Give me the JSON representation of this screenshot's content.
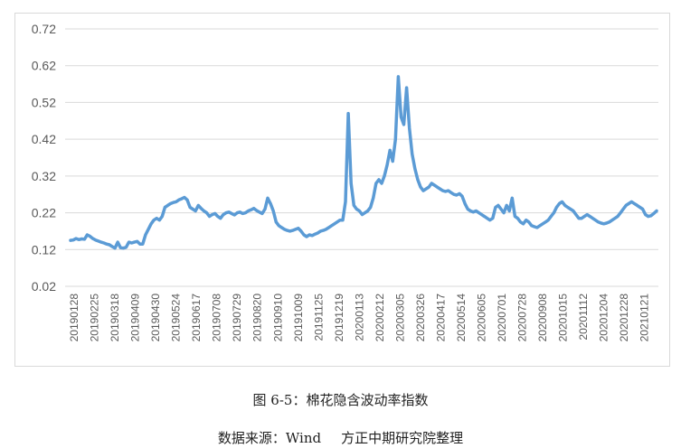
{
  "chart_data": {
    "type": "line",
    "title": "",
    "xlabel": "",
    "ylabel": "",
    "ylim": [
      0.02,
      0.72
    ],
    "y_ticks": [
      "0.72",
      "0.62",
      "0.52",
      "0.42",
      "0.32",
      "0.22",
      "0.12",
      "0.02"
    ],
    "x_tick_labels": [
      "20190128",
      "20190225",
      "20190318",
      "20190409",
      "20190430",
      "20190524",
      "20190617",
      "20190708",
      "20190729",
      "20190820",
      "20190910",
      "20191009",
      "20191125",
      "20191219",
      "20200113",
      "20200212",
      "20200305",
      "20200326",
      "20200417",
      "20200514",
      "20200605",
      "20200701",
      "20200728",
      "20200908",
      "20201015",
      "20201112",
      "20201204",
      "20201228",
      "20210121"
    ],
    "grid": "horizontal",
    "legend": "none",
    "line_color": "#5b9bd5",
    "series": [
      {
        "values": [
          0.145,
          0.146,
          0.15,
          0.147,
          0.149,
          0.148,
          0.16,
          0.156,
          0.15,
          0.146,
          0.143,
          0.14,
          0.138,
          0.135,
          0.133,
          0.128,
          0.124,
          0.14,
          0.125,
          0.124,
          0.126,
          0.14,
          0.138,
          0.14,
          0.142,
          0.135,
          0.135,
          0.16,
          0.175,
          0.19,
          0.2,
          0.205,
          0.2,
          0.21,
          0.235,
          0.24,
          0.245,
          0.248,
          0.25,
          0.255,
          0.258,
          0.262,
          0.255,
          0.235,
          0.23,
          0.225,
          0.24,
          0.232,
          0.225,
          0.22,
          0.21,
          0.215,
          0.218,
          0.21,
          0.205,
          0.215,
          0.22,
          0.222,
          0.218,
          0.214,
          0.22,
          0.222,
          0.218,
          0.22,
          0.225,
          0.228,
          0.232,
          0.226,
          0.222,
          0.218,
          0.23,
          0.26,
          0.245,
          0.225,
          0.195,
          0.185,
          0.18,
          0.175,
          0.172,
          0.17,
          0.172,
          0.175,
          0.178,
          0.17,
          0.16,
          0.155,
          0.16,
          0.158,
          0.162,
          0.165,
          0.17,
          0.172,
          0.175,
          0.18,
          0.185,
          0.19,
          0.195,
          0.2,
          0.2,
          0.25,
          0.49,
          0.3,
          0.24,
          0.23,
          0.225,
          0.215,
          0.22,
          0.225,
          0.235,
          0.26,
          0.3,
          0.31,
          0.3,
          0.32,
          0.35,
          0.39,
          0.36,
          0.42,
          0.59,
          0.48,
          0.46,
          0.56,
          0.45,
          0.38,
          0.34,
          0.31,
          0.29,
          0.28,
          0.285,
          0.29,
          0.3,
          0.295,
          0.29,
          0.285,
          0.28,
          0.278,
          0.28,
          0.275,
          0.27,
          0.268,
          0.272,
          0.265,
          0.245,
          0.23,
          0.225,
          0.222,
          0.225,
          0.22,
          0.215,
          0.21,
          0.205,
          0.2,
          0.205,
          0.235,
          0.24,
          0.23,
          0.22,
          0.24,
          0.225,
          0.26,
          0.21,
          0.205,
          0.195,
          0.19,
          0.2,
          0.195,
          0.185,
          0.182,
          0.18,
          0.185,
          0.19,
          0.195,
          0.2,
          0.21,
          0.22,
          0.235,
          0.245,
          0.25,
          0.24,
          0.235,
          0.23,
          0.225,
          0.215,
          0.205,
          0.205,
          0.21,
          0.215,
          0.21,
          0.205,
          0.2,
          0.195,
          0.192,
          0.19,
          0.192,
          0.195,
          0.2,
          0.205,
          0.21,
          0.22,
          0.23,
          0.24,
          0.245,
          0.25,
          0.245,
          0.24,
          0.235,
          0.23,
          0.215,
          0.21,
          0.212,
          0.218,
          0.225
        ]
      }
    ]
  },
  "captions": {
    "figure_title": "图 6-5：棉花隐含波动率指数",
    "source_label": "数据来源：Wind",
    "source_org": "方正中期研究院整理"
  }
}
